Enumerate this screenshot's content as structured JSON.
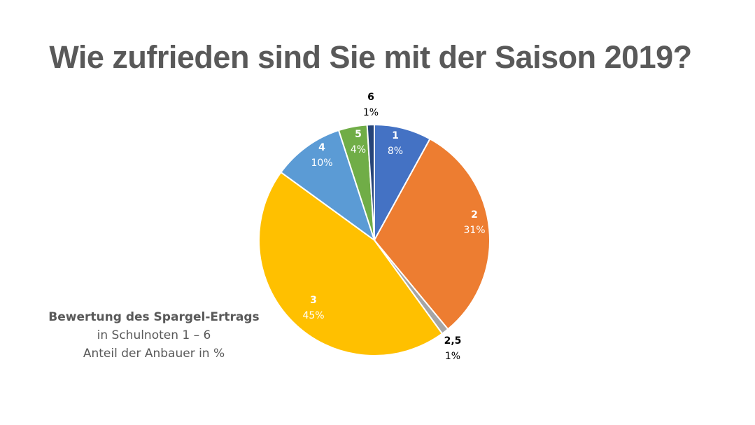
{
  "title": "Wie zufrieden sind Sie mit der Saison 2019?",
  "caption": {
    "line1": "Bewertung des Spargel-Ertrags",
    "line2": "in Schulnoten 1 – 6",
    "line3": "Anteil der Anbauer in %"
  },
  "chart_data": {
    "type": "pie",
    "title": "",
    "slices": [
      {
        "label": "1",
        "value": 8,
        "value_label": "8%",
        "color": "#4472C4",
        "label_color": "#ffffff",
        "label_outside": false
      },
      {
        "label": "2",
        "value": 31,
        "value_label": "31%",
        "color": "#ED7D31",
        "label_color": "#ffffff",
        "label_outside": false
      },
      {
        "label": "2,5",
        "value": 1,
        "value_label": "1%",
        "color": "#A5A5A5",
        "label_color": "#000000",
        "label_outside": true
      },
      {
        "label": "3",
        "value": 45,
        "value_label": "45%",
        "color": "#FFC000",
        "label_color": "#ffffff",
        "label_outside": false
      },
      {
        "label": "4",
        "value": 10,
        "value_label": "10%",
        "color": "#5B9BD5",
        "label_color": "#ffffff",
        "label_outside": false
      },
      {
        "label": "5",
        "value": 4,
        "value_label": "4%",
        "color": "#70AD47",
        "label_color": "#ffffff",
        "label_outside": false
      },
      {
        "label": "6",
        "value": 1,
        "value_label": "1%",
        "color": "#264478",
        "label_color": "#000000",
        "label_outside": true
      }
    ],
    "start_angle": "12 o'clock, clockwise",
    "legend": "none"
  }
}
